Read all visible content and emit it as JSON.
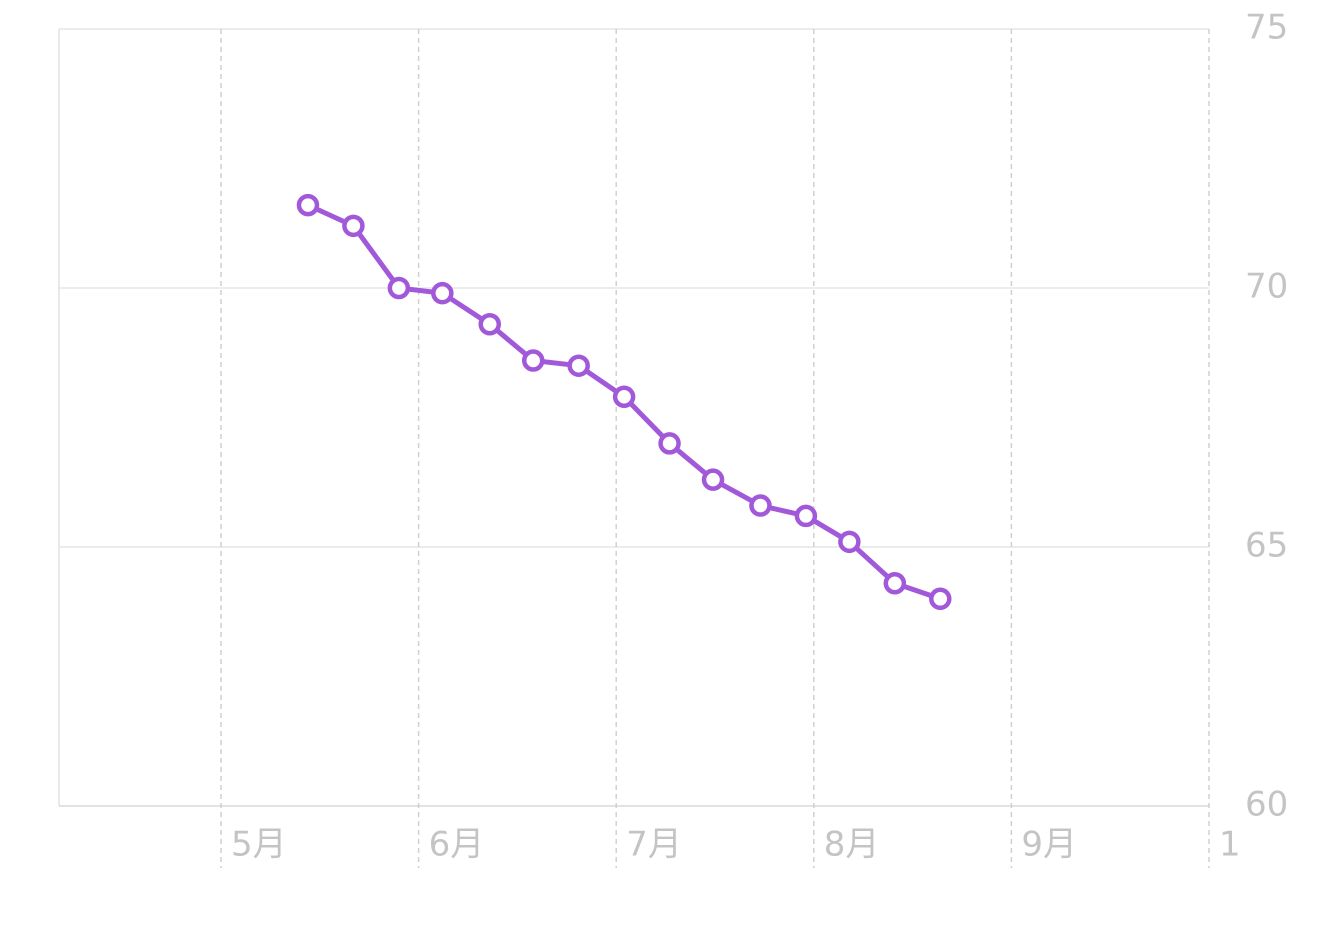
{
  "chart_data": {
    "type": "line",
    "color": "#a259d9",
    "x": [
      5.44,
      5.67,
      5.9,
      6.12,
      6.36,
      6.58,
      6.81,
      7.04,
      7.27,
      7.49,
      7.73,
      7.96,
      8.18,
      8.41,
      8.64
    ],
    "values": [
      71.6,
      71.2,
      70.0,
      69.9,
      69.3,
      68.6,
      68.5,
      67.9,
      67.0,
      66.3,
      65.8,
      65.6,
      65.1,
      64.3,
      64.0
    ],
    "xlim": [
      4.18,
      10
    ],
    "xticks": [
      {
        "value": 5,
        "label": "5月"
      },
      {
        "value": 6,
        "label": "6月"
      },
      {
        "value": 7,
        "label": "7月"
      },
      {
        "value": 8,
        "label": "8月"
      },
      {
        "value": 9,
        "label": "9月"
      },
      {
        "value": 10,
        "label": "1"
      }
    ],
    "ylim": [
      60,
      75
    ],
    "yticks": [
      60,
      65,
      70,
      75
    ],
    "grid": true
  }
}
